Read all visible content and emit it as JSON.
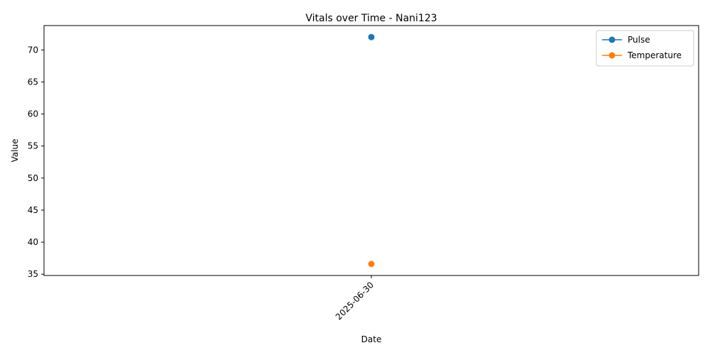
{
  "chart_data": {
    "type": "line",
    "title": "Vitals over Time - Nani123",
    "xlabel": "Date",
    "ylabel": "Value",
    "categories": [
      "2025-06-30"
    ],
    "ylim": [
      34.8,
      73.8
    ],
    "yticks": [
      35,
      40,
      45,
      50,
      55,
      60,
      65,
      70
    ],
    "grid": false,
    "legend_position": "top-right",
    "series": [
      {
        "name": "Pulse",
        "values": [
          72
        ],
        "color": "#1f77b4",
        "marker": "circle"
      },
      {
        "name": "Temperature",
        "values": [
          36.6
        ],
        "color": "#ff7f0e",
        "marker": "circle"
      }
    ]
  }
}
